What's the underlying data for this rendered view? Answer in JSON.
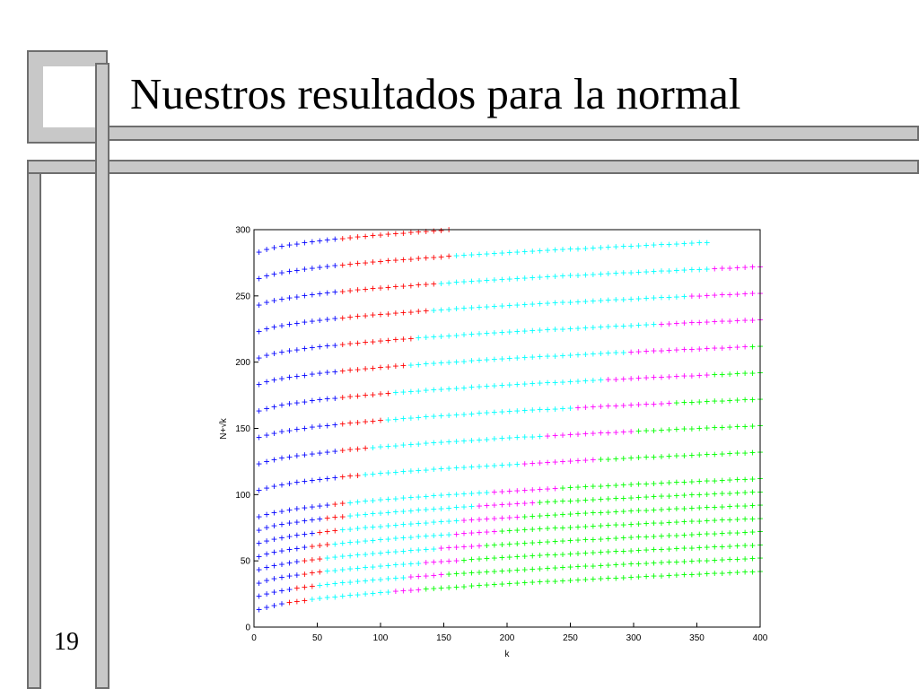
{
  "slide": {
    "title": "Nuestros resultados para la normal",
    "number": "19"
  },
  "chart_data": {
    "type": "scatter",
    "title": "",
    "xlabel": "k",
    "ylabel": "N+√k",
    "xlim": [
      0,
      400
    ],
    "ylim": [
      0,
      300
    ],
    "xticks": [
      0,
      50,
      100,
      150,
      200,
      250,
      300,
      350,
      400
    ],
    "yticks": [
      0,
      50,
      100,
      150,
      200,
      250,
      300
    ],
    "marker": "+",
    "grid": false,
    "legend": "none",
    "series": [
      {
        "color": "#0000ff",
        "region": {
          "k_min_at_bottom": 5,
          "k_min_at_top": 30,
          "k_max_at_bottom": 20,
          "k_max_at_top": 70,
          "y_max": 282
        }
      },
      {
        "color": "#ff0000",
        "region": {
          "k_min": "blue boundary",
          "k_max_at_bottom": 40,
          "k_max_at_top": 155,
          "y_max": 300
        }
      },
      {
        "color": "#00ffff",
        "region": {
          "k_min": "red boundary",
          "k_max_at_bottom": 100,
          "k_max_at_top": 400,
          "y_max": 300
        }
      },
      {
        "color": "#ff00ff",
        "region": {
          "k_max_at_bottom": 120,
          "k_max_at_top": 400,
          "y_max": 300
        }
      },
      {
        "color": "#00ff00",
        "region": {
          "k_max": 400,
          "y_max": 240
        }
      }
    ],
    "isolines": [
      {
        "N": 10,
        "k_range": [
          0,
          400
        ]
      },
      {
        "N": 20,
        "k_range": [
          0,
          400
        ]
      },
      {
        "N": 30,
        "k_range": [
          0,
          400
        ]
      },
      {
        "N": 40,
        "k_range": [
          0,
          400
        ]
      },
      {
        "N": 50,
        "k_range": [
          0,
          400
        ]
      },
      {
        "N": 60,
        "k_range": [
          0,
          400
        ]
      },
      {
        "N": 70,
        "k_range": [
          0,
          400
        ]
      },
      {
        "N": 80,
        "k_range": [
          0,
          400
        ]
      },
      {
        "N": 100,
        "k_range": [
          0,
          400
        ]
      },
      {
        "N": 120,
        "k_range": [
          0,
          400
        ]
      },
      {
        "N": 140,
        "k_range": [
          0,
          400
        ]
      },
      {
        "N": 160,
        "k_range": [
          0,
          400
        ]
      },
      {
        "N": 180,
        "k_range": [
          0,
          400
        ]
      },
      {
        "N": 200,
        "k_range": [
          0,
          400
        ]
      },
      {
        "N": 220,
        "k_range": [
          0,
          400
        ]
      },
      {
        "N": 240,
        "k_range": [
          0,
          400
        ]
      },
      {
        "N": 260,
        "k_range": [
          0,
          360
        ]
      },
      {
        "N": 280,
        "k_range": [
          0,
          160
        ]
      }
    ]
  }
}
